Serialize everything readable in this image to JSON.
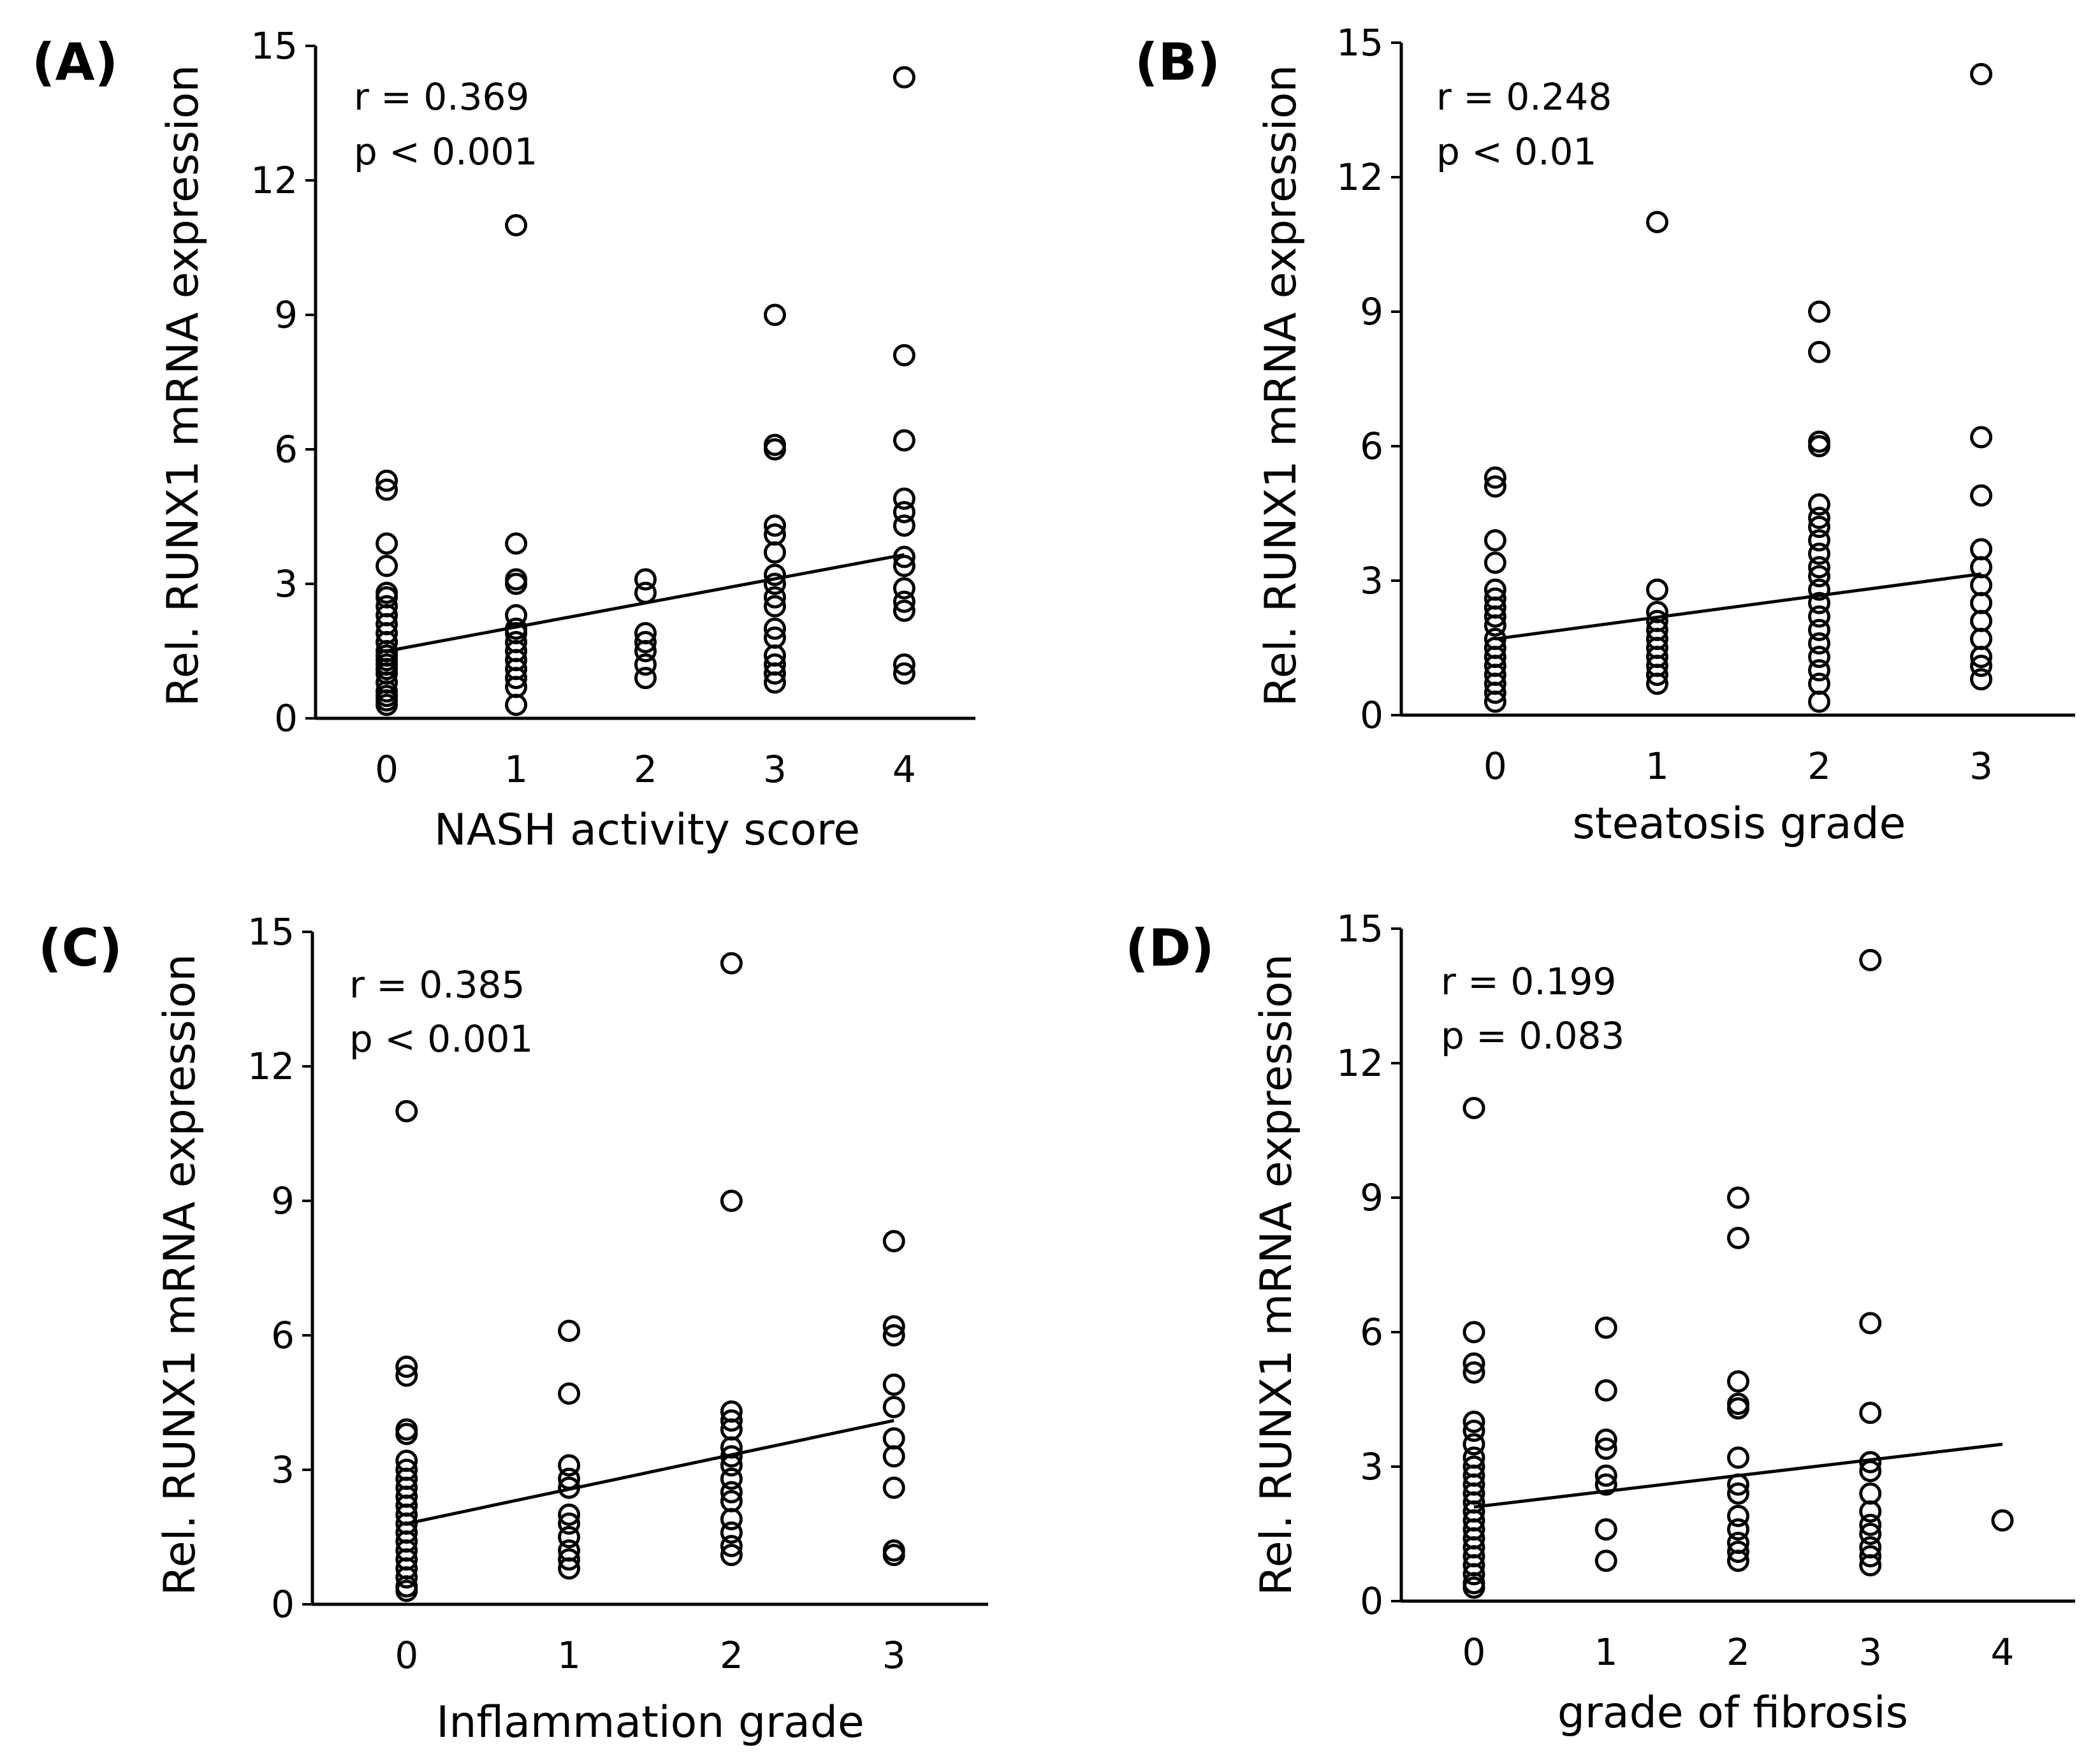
{
  "chart_data": [
    {
      "type": "scatter",
      "panel_label": "(A)",
      "xlabel": "NASH activity score",
      "ylabel": "Rel. RUNX1 mRNA expression",
      "x_ticks": [
        "0",
        "1",
        "2",
        "3",
        "4"
      ],
      "y_ticks": [
        "0",
        "3",
        "6",
        "9",
        "12",
        "15"
      ],
      "xlim": [
        -0.55,
        4.55
      ],
      "ylim": [
        0,
        15
      ],
      "stats": [
        "r = 0.369",
        "p < 0.001"
      ],
      "trendline": {
        "x": [
          0,
          4
        ],
        "y": [
          1.5,
          3.65
        ]
      },
      "points": [
        [
          0,
          5.3
        ],
        [
          0,
          5.1
        ],
        [
          0,
          3.9
        ],
        [
          0,
          3.4
        ],
        [
          0,
          2.8
        ],
        [
          0,
          2.7
        ],
        [
          0,
          2.5
        ],
        [
          0,
          2.3
        ],
        [
          0,
          2.1
        ],
        [
          0,
          1.9
        ],
        [
          0,
          1.7
        ],
        [
          0,
          1.5
        ],
        [
          0,
          1.4
        ],
        [
          0,
          1.3
        ],
        [
          0,
          1.2
        ],
        [
          0,
          1.1
        ],
        [
          0,
          1.0
        ],
        [
          0,
          0.8
        ],
        [
          0,
          0.6
        ],
        [
          0,
          0.5
        ],
        [
          0,
          0.4
        ],
        [
          0,
          0.3
        ],
        [
          1,
          11.0
        ],
        [
          1,
          3.9
        ],
        [
          1,
          3.1
        ],
        [
          1,
          3.0
        ],
        [
          1,
          2.3
        ],
        [
          1,
          2.0
        ],
        [
          1,
          1.9
        ],
        [
          1,
          1.7
        ],
        [
          1,
          1.5
        ],
        [
          1,
          1.3
        ],
        [
          1,
          1.1
        ],
        [
          1,
          0.9
        ],
        [
          1,
          0.7
        ],
        [
          1,
          0.3
        ],
        [
          2,
          3.1
        ],
        [
          2,
          2.8
        ],
        [
          2,
          1.9
        ],
        [
          2,
          1.7
        ],
        [
          2,
          1.5
        ],
        [
          2,
          1.2
        ],
        [
          2,
          0.9
        ],
        [
          3,
          9.0
        ],
        [
          3,
          6.1
        ],
        [
          3,
          6.0
        ],
        [
          3,
          4.3
        ],
        [
          3,
          4.1
        ],
        [
          3,
          3.7
        ],
        [
          3,
          3.2
        ],
        [
          3,
          3.0
        ],
        [
          3,
          2.7
        ],
        [
          3,
          2.5
        ],
        [
          3,
          2.0
        ],
        [
          3,
          1.8
        ],
        [
          3,
          1.4
        ],
        [
          3,
          1.2
        ],
        [
          3,
          1.0
        ],
        [
          3,
          0.8
        ],
        [
          4,
          14.3
        ],
        [
          4,
          8.1
        ],
        [
          4,
          6.2
        ],
        [
          4,
          4.9
        ],
        [
          4,
          4.6
        ],
        [
          4,
          4.3
        ],
        [
          4,
          3.6
        ],
        [
          4,
          3.4
        ],
        [
          4,
          2.9
        ],
        [
          4,
          2.6
        ],
        [
          4,
          2.4
        ],
        [
          4,
          1.2
        ],
        [
          4,
          1.0
        ]
      ]
    },
    {
      "type": "scatter",
      "panel_label": "(B)",
      "xlabel": "steatosis grade",
      "ylabel": "Rel. RUNX1 mRNA expression",
      "x_ticks": [
        "0",
        "1",
        "2",
        "3"
      ],
      "y_ticks": [
        "0",
        "3",
        "6",
        "9",
        "12",
        "15"
      ],
      "xlim": [
        -0.58,
        3.58
      ],
      "ylim": [
        0,
        15
      ],
      "stats": [
        "r = 0.248",
        "p < 0.01"
      ],
      "trendline": {
        "x": [
          0,
          3
        ],
        "y": [
          1.7,
          3.15
        ]
      },
      "points": [
        [
          0,
          5.3
        ],
        [
          0,
          5.1
        ],
        [
          0,
          3.9
        ],
        [
          0,
          3.4
        ],
        [
          0,
          2.8
        ],
        [
          0,
          2.6
        ],
        [
          0,
          2.4
        ],
        [
          0,
          2.2
        ],
        [
          0,
          2.0
        ],
        [
          0,
          1.7
        ],
        [
          0,
          1.5
        ],
        [
          0,
          1.3
        ],
        [
          0,
          1.1
        ],
        [
          0,
          0.9
        ],
        [
          0,
          0.7
        ],
        [
          0,
          0.5
        ],
        [
          0,
          0.3
        ],
        [
          1,
          11.0
        ],
        [
          1,
          2.8
        ],
        [
          1,
          2.3
        ],
        [
          1,
          2.1
        ],
        [
          1,
          1.9
        ],
        [
          1,
          1.7
        ],
        [
          1,
          1.5
        ],
        [
          1,
          1.3
        ],
        [
          1,
          1.1
        ],
        [
          1,
          0.9
        ],
        [
          1,
          0.7
        ],
        [
          2,
          9.0
        ],
        [
          2,
          8.1
        ],
        [
          2,
          6.1
        ],
        [
          2,
          6.0
        ],
        [
          2,
          4.7
        ],
        [
          2,
          4.4
        ],
        [
          2,
          4.2
        ],
        [
          2,
          3.9
        ],
        [
          2,
          3.6
        ],
        [
          2,
          3.3
        ],
        [
          2,
          3.1
        ],
        [
          2,
          2.8
        ],
        [
          2,
          2.5
        ],
        [
          2,
          2.2
        ],
        [
          2,
          1.9
        ],
        [
          2,
          1.6
        ],
        [
          2,
          1.3
        ],
        [
          2,
          1.0
        ],
        [
          2,
          0.7
        ],
        [
          2,
          0.3
        ],
        [
          3,
          14.3
        ],
        [
          3,
          6.2
        ],
        [
          3,
          4.9
        ],
        [
          3,
          3.7
        ],
        [
          3,
          3.3
        ],
        [
          3,
          2.9
        ],
        [
          3,
          2.5
        ],
        [
          3,
          2.1
        ],
        [
          3,
          1.7
        ],
        [
          3,
          1.3
        ],
        [
          3,
          1.1
        ],
        [
          3,
          0.8
        ]
      ]
    },
    {
      "type": "scatter",
      "panel_label": "(C)",
      "xlabel": "Inflammation grade",
      "ylabel": "Rel. RUNX1 mRNA expression",
      "x_ticks": [
        "0",
        "1",
        "2",
        "3"
      ],
      "y_ticks": [
        "0",
        "3",
        "6",
        "9",
        "12",
        "15"
      ],
      "xlim": [
        -0.58,
        3.58
      ],
      "ylim": [
        0,
        15
      ],
      "stats": [
        "r = 0.385",
        "p < 0.001"
      ],
      "trendline": {
        "x": [
          0,
          3
        ],
        "y": [
          1.8,
          4.1
        ]
      },
      "points": [
        [
          0,
          11.0
        ],
        [
          0,
          5.3
        ],
        [
          0,
          5.1
        ],
        [
          0,
          3.9
        ],
        [
          0,
          3.8
        ],
        [
          0,
          3.2
        ],
        [
          0,
          3.0
        ],
        [
          0,
          2.8
        ],
        [
          0,
          2.6
        ],
        [
          0,
          2.4
        ],
        [
          0,
          2.2
        ],
        [
          0,
          2.0
        ],
        [
          0,
          1.8
        ],
        [
          0,
          1.6
        ],
        [
          0,
          1.4
        ],
        [
          0,
          1.2
        ],
        [
          0,
          1.0
        ],
        [
          0,
          0.8
        ],
        [
          0,
          0.6
        ],
        [
          0,
          0.4
        ],
        [
          0,
          0.3
        ],
        [
          1,
          6.1
        ],
        [
          1,
          4.7
        ],
        [
          1,
          3.1
        ],
        [
          1,
          2.8
        ],
        [
          1,
          2.6
        ],
        [
          1,
          2.0
        ],
        [
          1,
          1.8
        ],
        [
          1,
          1.5
        ],
        [
          1,
          1.2
        ],
        [
          1,
          1.0
        ],
        [
          1,
          0.8
        ],
        [
          2,
          14.3
        ],
        [
          2,
          9.0
        ],
        [
          2,
          4.3
        ],
        [
          2,
          4.1
        ],
        [
          2,
          3.9
        ],
        [
          2,
          3.5
        ],
        [
          2,
          3.3
        ],
        [
          2,
          3.1
        ],
        [
          2,
          2.8
        ],
        [
          2,
          2.5
        ],
        [
          2,
          2.3
        ],
        [
          2,
          1.9
        ],
        [
          2,
          1.6
        ],
        [
          2,
          1.3
        ],
        [
          2,
          1.1
        ],
        [
          3,
          8.1
        ],
        [
          3,
          6.2
        ],
        [
          3,
          6.0
        ],
        [
          3,
          4.9
        ],
        [
          3,
          4.4
        ],
        [
          3,
          3.7
        ],
        [
          3,
          3.3
        ],
        [
          3,
          2.6
        ],
        [
          3,
          1.2
        ],
        [
          3,
          1.1
        ]
      ]
    },
    {
      "type": "scatter",
      "panel_label": "(D)",
      "xlabel": "grade of fibrosis",
      "ylabel": "Rel. RUNX1  mRNA expression",
      "x_ticks": [
        "0",
        "1",
        "2",
        "3",
        "4"
      ],
      "y_ticks": [
        "0",
        "3",
        "6",
        "9",
        "12",
        "15"
      ],
      "xlim": [
        -0.55,
        4.55
      ],
      "ylim": [
        0,
        15
      ],
      "stats": [
        "r = 0.199",
        "p = 0.083"
      ],
      "trendline": {
        "x": [
          0,
          4
        ],
        "y": [
          2.1,
          3.5
        ]
      },
      "points": [
        [
          0,
          11.0
        ],
        [
          0,
          6.0
        ],
        [
          0,
          5.3
        ],
        [
          0,
          5.1
        ],
        [
          0,
          4.0
        ],
        [
          0,
          3.8
        ],
        [
          0,
          3.5
        ],
        [
          0,
          3.2
        ],
        [
          0,
          3.0
        ],
        [
          0,
          2.8
        ],
        [
          0,
          2.6
        ],
        [
          0,
          2.4
        ],
        [
          0,
          2.2
        ],
        [
          0,
          2.0
        ],
        [
          0,
          1.8
        ],
        [
          0,
          1.6
        ],
        [
          0,
          1.4
        ],
        [
          0,
          1.2
        ],
        [
          0,
          1.0
        ],
        [
          0,
          0.8
        ],
        [
          0,
          0.6
        ],
        [
          0,
          0.4
        ],
        [
          0,
          0.3
        ],
        [
          1,
          6.1
        ],
        [
          1,
          4.7
        ],
        [
          1,
          3.6
        ],
        [
          1,
          3.4
        ],
        [
          1,
          2.8
        ],
        [
          1,
          2.6
        ],
        [
          1,
          1.6
        ],
        [
          1,
          0.9
        ],
        [
          2,
          9.0
        ],
        [
          2,
          8.1
        ],
        [
          2,
          4.9
        ],
        [
          2,
          4.4
        ],
        [
          2,
          4.3
        ],
        [
          2,
          3.2
        ],
        [
          2,
          2.6
        ],
        [
          2,
          2.4
        ],
        [
          2,
          1.9
        ],
        [
          2,
          1.6
        ],
        [
          2,
          1.3
        ],
        [
          2,
          1.1
        ],
        [
          2,
          0.9
        ],
        [
          3,
          14.3
        ],
        [
          3,
          6.2
        ],
        [
          3,
          4.2
        ],
        [
          3,
          3.1
        ],
        [
          3,
          2.9
        ],
        [
          3,
          2.4
        ],
        [
          3,
          2.0
        ],
        [
          3,
          1.7
        ],
        [
          3,
          1.5
        ],
        [
          3,
          1.2
        ],
        [
          3,
          1.0
        ],
        [
          3,
          0.8
        ],
        [
          4,
          1.8
        ]
      ]
    }
  ]
}
